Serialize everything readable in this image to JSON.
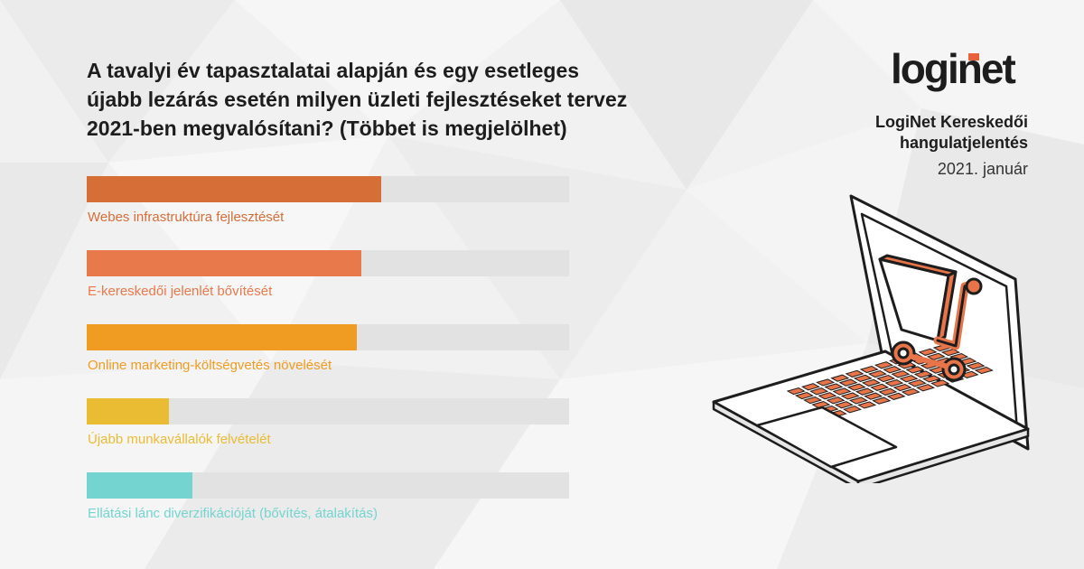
{
  "title_lines": [
    "A tavalyi év tapasztalatai alapján és egy esetleges",
    "újabb lezárás esetén milyen üzleti fejlesztéseket tervez",
    "2021-ben megvalósítani? (Többet is megjelölhet)"
  ],
  "brand": {
    "logo_text": "loginet",
    "report_title_lines": [
      "LogiNet Kereskedői",
      "hangulatjelentés"
    ],
    "report_date": "2021. január"
  },
  "colors": {
    "track": "#e2e2e2",
    "logo_accent": "#e8613a",
    "cart": "#e8754a"
  },
  "icons": [
    "laptop-icon",
    "shopping-cart-icon"
  ],
  "chart_data": {
    "type": "bar",
    "orientation": "horizontal",
    "categories": [
      "Webes infrastruktúra fejlesztését",
      "E-kereskedői jelenlét bővítését",
      "Online marketing-költségvetés növelését",
      "Újabb munkavállalók felvételét",
      "Ellátási lánc diverzifikációját (bővítés, átalakítás)"
    ],
    "values": [
      61,
      57,
      56,
      17,
      22
    ],
    "colors": [
      "#d66e38",
      "#e8794b",
      "#f09c22",
      "#eabc34",
      "#73d4d0"
    ],
    "xlim": [
      0,
      100
    ],
    "axis_visible": false,
    "grid": false,
    "legend": "none"
  }
}
